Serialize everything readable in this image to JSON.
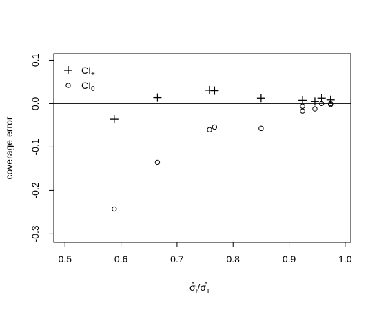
{
  "chart_data": {
    "type": "scatter",
    "title": "",
    "xlabel": "σ̂I / σ̂T",
    "xlabel_parts": {
      "num": "σ",
      "num_sub": "I",
      "sep": "/",
      "den": "σ",
      "den_sub": "T",
      "hat": "^"
    },
    "ylabel": "coverage error",
    "xlim": [
      0.48,
      1.01
    ],
    "ylim": [
      -0.32,
      0.115
    ],
    "xticks": [
      0.5,
      0.6,
      0.7,
      0.8,
      0.9,
      1.0
    ],
    "xtick_labels": [
      "0.5",
      "0.6",
      "0.7",
      "0.8",
      "0.9",
      "1.0"
    ],
    "yticks": [
      -0.3,
      -0.2,
      -0.1,
      0.0,
      0.1
    ],
    "ytick_labels": [
      "-0.3",
      "-0.2",
      "-0.1",
      "0.0",
      "0.1"
    ],
    "reference_line_y": 0.0,
    "grid": false,
    "legend_position": "top-left",
    "legend": [
      {
        "marker": "plus",
        "label": "CI",
        "sub": "+"
      },
      {
        "marker": "circle",
        "label": "CI",
        "sub": "0"
      }
    ],
    "series": [
      {
        "marker": "plus",
        "x": [
          0.588,
          0.665,
          0.758,
          0.767,
          0.85,
          0.924,
          0.946,
          0.958,
          0.974
        ],
        "y": [
          -0.036,
          0.014,
          0.031,
          0.03,
          0.013,
          0.008,
          0.005,
          0.013,
          0.009
        ]
      },
      {
        "marker": "circle",
        "x": [
          0.588,
          0.665,
          0.758,
          0.767,
          0.85,
          0.924,
          0.924,
          0.946,
          0.958,
          0.974,
          0.974
        ],
        "y": [
          -0.243,
          -0.135,
          -0.06,
          -0.054,
          -0.057,
          -0.006,
          -0.017,
          -0.012,
          0.0,
          0.0,
          -0.002
        ]
      }
    ]
  }
}
